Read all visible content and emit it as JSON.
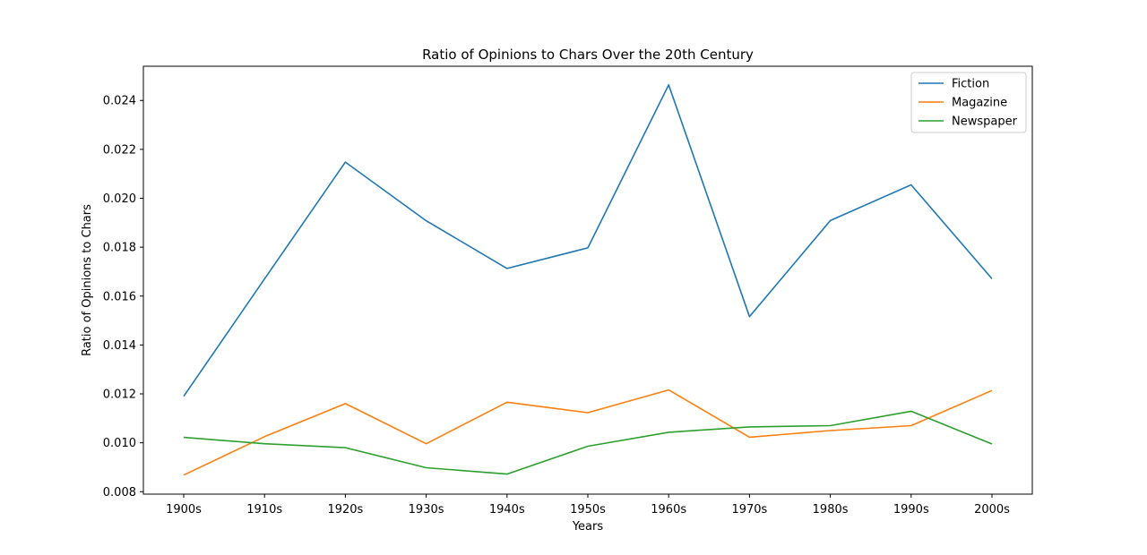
{
  "chart_data": {
    "type": "line",
    "title": "Ratio of Opinions to Chars Over the 20th Century",
    "xlabel": "Years",
    "ylabel": "Ratio of Opinions to Chars",
    "categories": [
      "1900s",
      "1910s",
      "1920s",
      "1930s",
      "1940s",
      "1950s",
      "1960s",
      "1970s",
      "1980s",
      "1990s",
      "2000s"
    ],
    "ylim": [
      0.0079,
      0.0254
    ],
    "yticks": [
      0.008,
      0.01,
      0.012,
      0.014,
      0.016,
      0.018,
      0.02,
      0.022,
      0.024
    ],
    "ytick_labels": [
      "0.008",
      "0.010",
      "0.012",
      "0.014",
      "0.016",
      "0.018",
      "0.020",
      "0.022",
      "0.024"
    ],
    "grid": false,
    "legend_position": "top-right",
    "series": [
      {
        "name": "Fiction",
        "color": "#1f77b4",
        "values": [
          0.0119,
          0.0167,
          0.02148,
          0.01908,
          0.01713,
          0.01797,
          0.02464,
          0.01516,
          0.01909,
          0.02055,
          0.01671
        ]
      },
      {
        "name": "Magazine",
        "color": "#ff7f0e",
        "values": [
          0.00868,
          0.01025,
          0.0116,
          0.00996,
          0.01166,
          0.01123,
          0.01216,
          0.01023,
          0.0105,
          0.0107,
          0.01214
        ]
      },
      {
        "name": "Newspaper",
        "color": "#2ca02c",
        "values": [
          0.01022,
          0.00996,
          0.0098,
          0.00898,
          0.00872,
          0.00986,
          0.01043,
          0.01065,
          0.0107,
          0.01129,
          0.00995
        ]
      }
    ]
  }
}
